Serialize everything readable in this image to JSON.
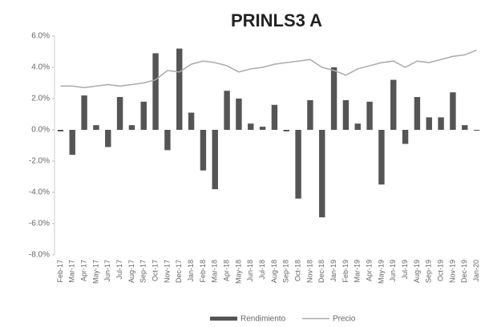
{
  "chart_data": {
    "type": "bar_line",
    "title": "PRINLS3 A",
    "categories": [
      "Feb-17",
      "Mar-17",
      "Apr-17",
      "May-17",
      "Jun-17",
      "Jul-17",
      "Aug-17",
      "Sep-17",
      "Oct-17",
      "Nov-17",
      "Dec-17",
      "Jan-18",
      "Feb-18",
      "Mar-18",
      "Apr-18",
      "May-18",
      "Jun-18",
      "Jul-18",
      "Aug-18",
      "Sep-18",
      "Oct-18",
      "Nov-18",
      "Dec-18",
      "Jan-19",
      "Feb-19",
      "Mar-19",
      "Apr-19",
      "May-19",
      "Jun-19",
      "Jul-19",
      "Aug-19",
      "Sep-19",
      "Oct-19",
      "Nov-19",
      "Dec-19",
      "Jan-20"
    ],
    "series": [
      {
        "name": "Rendimiento",
        "type": "bar",
        "color": "#555555",
        "values": [
          -0.1,
          -1.6,
          2.2,
          0.3,
          -1.1,
          2.1,
          0.3,
          1.8,
          4.9,
          -1.3,
          5.2,
          1.1,
          -2.6,
          -3.8,
          2.5,
          2.0,
          0.4,
          0.2,
          1.6,
          -0.1,
          -4.4,
          1.9,
          -5.6,
          4.0,
          1.9,
          0.4,
          1.8,
          -3.5,
          3.2,
          -0.9,
          2.1,
          0.8,
          0.8,
          2.4,
          0.3,
          0.0
        ]
      },
      {
        "name": "Precio",
        "type": "line",
        "color": "#aaaaaa",
        "values": [
          2.8,
          2.8,
          2.7,
          2.8,
          2.9,
          2.8,
          2.9,
          3.0,
          3.2,
          3.8,
          3.7,
          4.2,
          4.4,
          4.3,
          4.1,
          3.7,
          3.9,
          4.0,
          4.2,
          4.3,
          4.4,
          4.5,
          4.0,
          3.8,
          3.5,
          3.9,
          4.1,
          4.3,
          4.4,
          4.0,
          4.4,
          4.3,
          4.5,
          4.7,
          4.8,
          5.1
        ]
      }
    ],
    "ylim": [
      -8,
      6
    ],
    "yticks": [
      {
        "value": -8,
        "label": "-8.0%"
      },
      {
        "value": -6,
        "label": "-6.0%"
      },
      {
        "value": -4,
        "label": "-4.0%"
      },
      {
        "value": -2,
        "label": "-2.0%"
      },
      {
        "value": 0,
        "label": "0.0%"
      },
      {
        "value": 2,
        "label": "2.0%"
      },
      {
        "value": 4,
        "label": "4.0%"
      },
      {
        "value": 6,
        "label": "6.0%"
      }
    ],
    "grid": false,
    "legend": "bottom"
  }
}
